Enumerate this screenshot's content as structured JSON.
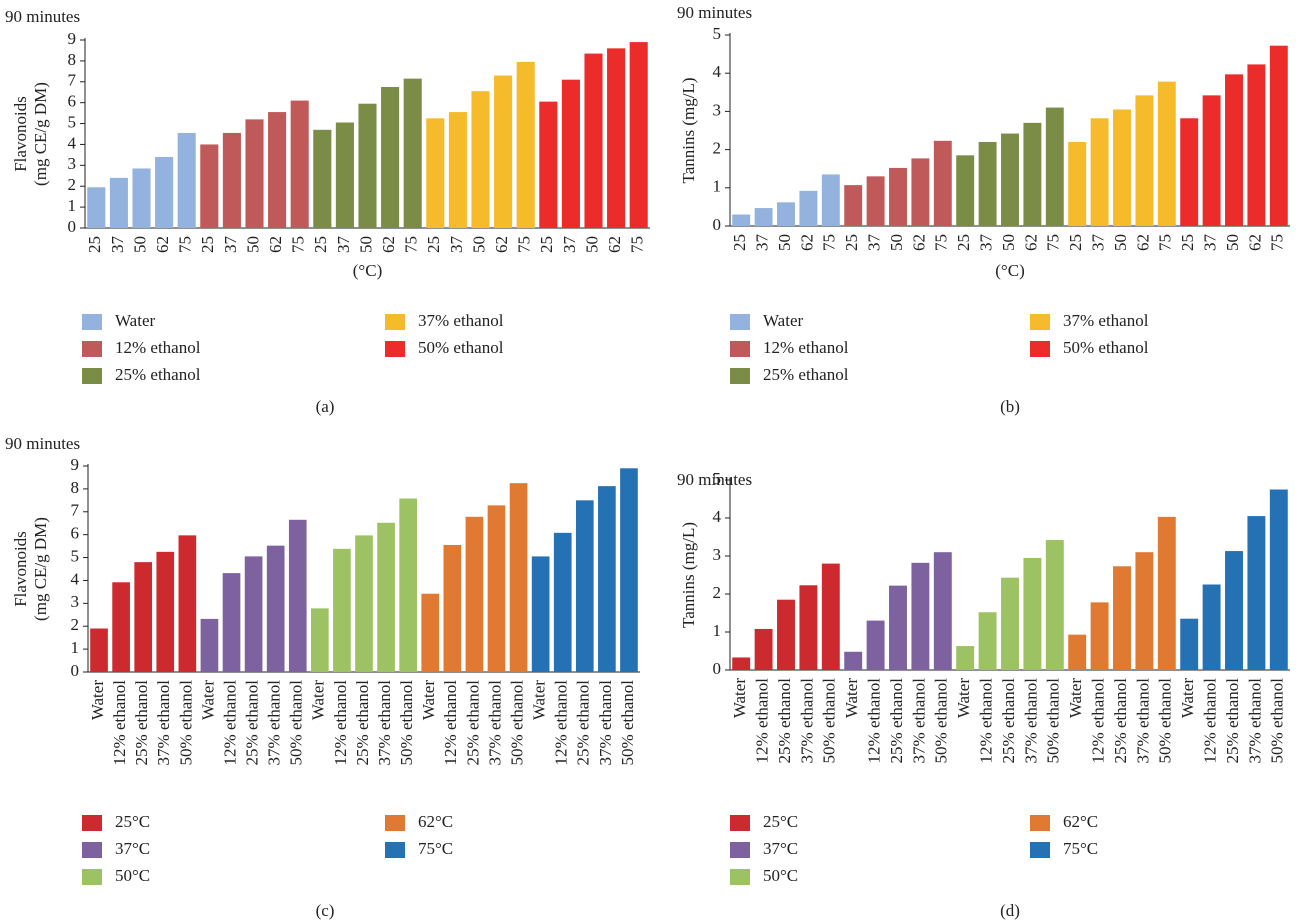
{
  "chart_data": [
    {
      "type": "bar",
      "panel_label": "(a)",
      "subtitle": "90 minutes",
      "ylabel": [
        "Flavonoids",
        "(mg CE/g DM)"
      ],
      "xlabel": "(°C)",
      "ylim": [
        0,
        9
      ],
      "yticks": [
        0,
        1,
        2,
        3,
        4,
        5,
        6,
        7,
        8,
        9
      ],
      "series": [
        {
          "name": "Water",
          "color": "#93b3de",
          "categories": [
            "25",
            "37",
            "50",
            "62",
            "75"
          ],
          "values": [
            1.95,
            2.4,
            2.85,
            3.4,
            4.55
          ]
        },
        {
          "name": "12% ethanol",
          "color": "#c05a5a",
          "categories": [
            "25",
            "37",
            "50",
            "62",
            "75"
          ],
          "values": [
            4.0,
            4.55,
            5.2,
            5.55,
            6.1
          ]
        },
        {
          "name": "25% ethanol",
          "color": "#7a8c45",
          "categories": [
            "25",
            "37",
            "50",
            "62",
            "75"
          ],
          "values": [
            4.7,
            5.05,
            5.95,
            6.75,
            7.15
          ]
        },
        {
          "name": "37% ethanol",
          "color": "#f5bb2a",
          "categories": [
            "25",
            "37",
            "50",
            "62",
            "75"
          ],
          "values": [
            5.25,
            5.55,
            6.55,
            7.3,
            7.95
          ]
        },
        {
          "name": "50% ethanol",
          "color": "#ec2b2b",
          "categories": [
            "25",
            "37",
            "50",
            "62",
            "75"
          ],
          "values": [
            6.05,
            7.1,
            8.35,
            8.6,
            8.9
          ]
        }
      ]
    },
    {
      "type": "bar",
      "panel_label": "(b)",
      "subtitle": "90 minutes",
      "ylabel": [
        "Tannins (mg/L)"
      ],
      "xlabel": "(°C)",
      "ylim": [
        0,
        5
      ],
      "yticks": [
        0,
        1,
        2,
        3,
        4,
        5
      ],
      "series": [
        {
          "name": "Water",
          "color": "#93b3de",
          "categories": [
            "25",
            "37",
            "50",
            "62",
            "75"
          ],
          "values": [
            0.3,
            0.47,
            0.62,
            0.92,
            1.35
          ]
        },
        {
          "name": "12% ethanol",
          "color": "#c05a5a",
          "categories": [
            "25",
            "37",
            "50",
            "62",
            "75"
          ],
          "values": [
            1.07,
            1.3,
            1.52,
            1.77,
            2.23
          ]
        },
        {
          "name": "25% ethanol",
          "color": "#7a8c45",
          "categories": [
            "25",
            "37",
            "50",
            "62",
            "75"
          ],
          "values": [
            1.85,
            2.2,
            2.42,
            2.7,
            3.1
          ]
        },
        {
          "name": "37% ethanol",
          "color": "#f5bb2a",
          "categories": [
            "25",
            "37",
            "50",
            "62",
            "75"
          ],
          "values": [
            2.2,
            2.82,
            3.05,
            3.42,
            3.78
          ]
        },
        {
          "name": "50% ethanol",
          "color": "#ec2b2b",
          "categories": [
            "25",
            "37",
            "50",
            "62",
            "75"
          ],
          "values": [
            2.82,
            3.42,
            3.97,
            4.23,
            4.72
          ]
        }
      ]
    },
    {
      "type": "bar",
      "panel_label": "(c)",
      "subtitle": "90 minutes",
      "ylabel": [
        "Flavonoids",
        "(mg CE/g DM)"
      ],
      "ylim": [
        0,
        9
      ],
      "yticks": [
        0,
        1,
        2,
        3,
        4,
        5,
        6,
        7,
        8,
        9
      ],
      "series": [
        {
          "name": "25°C",
          "color": "#cc2a2f",
          "categories": [
            "Water",
            "12% ethanol",
            "25% ethanol",
            "37% ethanol",
            "50% ethanol"
          ],
          "values": [
            1.9,
            3.92,
            4.8,
            5.25,
            5.97
          ]
        },
        {
          "name": "37°C",
          "color": "#7d629f",
          "categories": [
            "Water",
            "12% ethanol",
            "25% ethanol",
            "37% ethanol",
            "50% ethanol"
          ],
          "values": [
            2.32,
            4.32,
            5.05,
            5.52,
            6.65
          ]
        },
        {
          "name": "50°C",
          "color": "#9dc263",
          "categories": [
            "Water",
            "12% ethanol",
            "25% ethanol",
            "37% ethanol",
            "50% ethanol"
          ],
          "values": [
            2.78,
            5.38,
            5.97,
            6.52,
            7.58
          ]
        },
        {
          "name": "62°C",
          "color": "#e07a32",
          "categories": [
            "Water",
            "12% ethanol",
            "25% ethanol",
            "37% ethanol",
            "50% ethanol"
          ],
          "values": [
            3.42,
            5.55,
            6.78,
            7.28,
            8.25
          ]
        },
        {
          "name": "75°C",
          "color": "#2471b4",
          "categories": [
            "Water",
            "12% ethanol",
            "25% ethanol",
            "37% ethanol",
            "50% ethanol"
          ],
          "values": [
            5.05,
            6.08,
            7.5,
            8.12,
            8.9
          ]
        }
      ]
    },
    {
      "type": "bar",
      "panel_label": "(d)",
      "subtitle": "90 minutes",
      "ylabel": [
        "Tannins (mg/L)"
      ],
      "ylim": [
        0,
        5
      ],
      "yticks": [
        0,
        1,
        2,
        3,
        4,
        5
      ],
      "series": [
        {
          "name": "25°C",
          "color": "#cc2a2f",
          "categories": [
            "Water",
            "12% ethanol",
            "25% ethanol",
            "37% ethanol",
            "50% ethanol"
          ],
          "values": [
            0.33,
            1.08,
            1.85,
            2.23,
            2.8
          ]
        },
        {
          "name": "37°C",
          "color": "#7d629f",
          "categories": [
            "Water",
            "12% ethanol",
            "25% ethanol",
            "37% ethanol",
            "50% ethanol"
          ],
          "values": [
            0.48,
            1.3,
            2.22,
            2.82,
            3.1
          ]
        },
        {
          "name": "50°C",
          "color": "#9dc263",
          "categories": [
            "Water",
            "12% ethanol",
            "25% ethanol",
            "37% ethanol",
            "50% ethanol"
          ],
          "values": [
            0.63,
            1.52,
            2.43,
            2.95,
            3.42
          ]
        },
        {
          "name": "62°C",
          "color": "#e07a32",
          "categories": [
            "Water",
            "12% ethanol",
            "25% ethanol",
            "37% ethanol",
            "50% ethanol"
          ],
          "values": [
            0.93,
            1.78,
            2.73,
            3.1,
            4.03
          ]
        },
        {
          "name": "75°C",
          "color": "#2471b4",
          "categories": [
            "Water",
            "12% ethanol",
            "25% ethanol",
            "37% ethanol",
            "50% ethanol"
          ],
          "values": [
            1.35,
            2.25,
            3.13,
            4.05,
            4.75
          ]
        }
      ]
    }
  ]
}
